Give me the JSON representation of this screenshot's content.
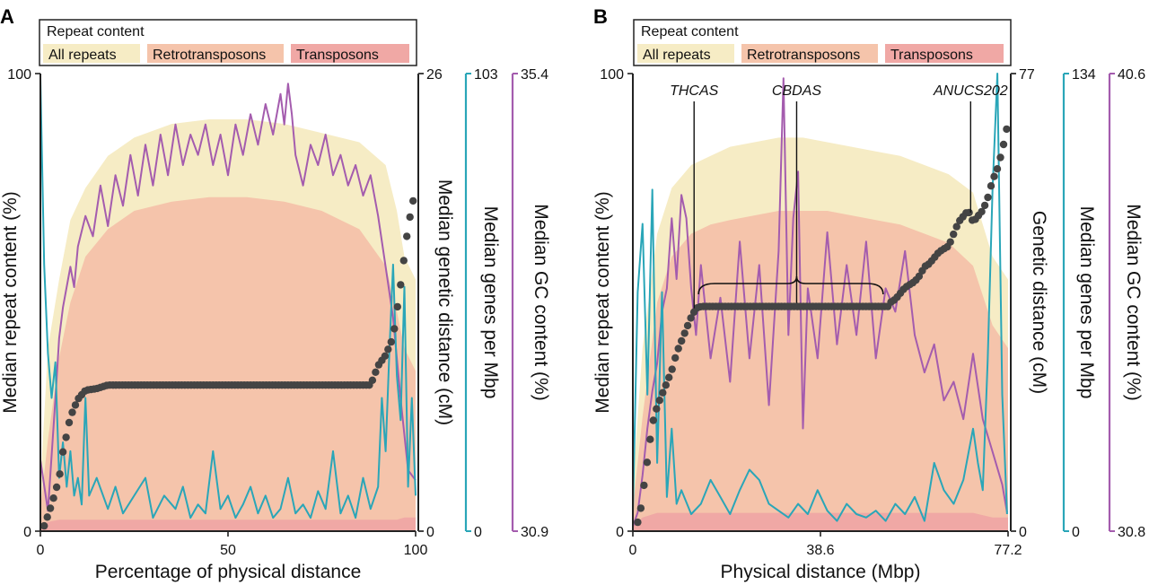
{
  "colors": {
    "all_repeats": "#f6ecc5",
    "retrotransposons": "#f5c4ab",
    "transposons": "#f0a8a5",
    "genetic": "#444444",
    "genes": "#2aa6b8",
    "gc": "#a45cae",
    "axis": "#222222"
  },
  "chart_data": [
    {
      "panel_label": "A",
      "type": "line",
      "legend": {
        "title": "Repeat content",
        "entries": [
          "All repeats",
          "Retrotransposons",
          "Transposons"
        ],
        "placement": "top"
      },
      "xlabel": "Percentage of physical distance",
      "xlim": [
        0,
        100
      ],
      "xticks": [
        {
          "value": 0,
          "label": "0"
        },
        {
          "value": 50,
          "label": "50"
        },
        {
          "value": 100,
          "label": "100"
        }
      ],
      "axes": {
        "repeat": {
          "label": "Median repeat content (%)",
          "lim": [
            0,
            100
          ],
          "tick_labels": [
            "0",
            "100"
          ]
        },
        "genetic": {
          "label": "Median genetic distance (cM)",
          "lim": [
            0,
            26
          ],
          "tick_labels": [
            "0",
            "26"
          ]
        },
        "genes": {
          "label": "Median genes per Mbp",
          "lim": [
            0,
            103
          ],
          "tick_labels": [
            "0",
            "103"
          ]
        },
        "gc": {
          "label": "Median GC content (%)",
          "lim": [
            30.9,
            35.4
          ],
          "tick_labels": [
            "30.9",
            "35.4"
          ]
        }
      },
      "area_series": {
        "x": [
          0,
          2,
          5,
          8,
          12,
          18,
          25,
          35,
          45,
          55,
          65,
          75,
          85,
          92,
          95,
          97,
          100
        ],
        "all_repeats": [
          10,
          40,
          55,
          68,
          75,
          82,
          86,
          89,
          90,
          90,
          89,
          87,
          85,
          80,
          70,
          60,
          55
        ],
        "retrotransposons": [
          5,
          20,
          38,
          50,
          60,
          66,
          70,
          72,
          73,
          73,
          72,
          70,
          66,
          58,
          48,
          40,
          35
        ],
        "transposons": [
          1,
          2,
          2.5,
          2.5,
          2.5,
          2.5,
          2.5,
          2.5,
          2.5,
          2.5,
          2.5,
          2.5,
          2.5,
          2.5,
          2.5,
          3,
          3
        ]
      },
      "genetic_distance": {
        "x": [
          1,
          3,
          5,
          6,
          8,
          10,
          12,
          15,
          18,
          88,
          90,
          92,
          94,
          96,
          98,
          100
        ],
        "y": [
          0.3,
          1.5,
          3,
          4.5,
          6.5,
          7.5,
          8,
          8.1,
          8.3,
          8.3,
          9.4,
          10,
          11,
          14,
          17.3,
          19.5
        ]
      },
      "genes_per_mbp": {
        "x": [
          0,
          1,
          2,
          3,
          4,
          5,
          6,
          7,
          8,
          9,
          10,
          11,
          12,
          13,
          15,
          18,
          20,
          22,
          25,
          28,
          30,
          33,
          36,
          38,
          40,
          42,
          44,
          46,
          48,
          50,
          52,
          54,
          56,
          58,
          60,
          62,
          64,
          66,
          68,
          70,
          72,
          74,
          76,
          78,
          80,
          82,
          84,
          86,
          88,
          90,
          91,
          92,
          93,
          94,
          95,
          96,
          97,
          98,
          99,
          100
        ],
        "y": [
          102,
          60,
          40,
          30,
          38,
          12,
          20,
          10,
          18,
          8,
          12,
          6,
          30,
          8,
          12,
          5,
          10,
          4,
          8,
          12,
          3,
          8,
          5,
          10,
          3,
          6,
          4,
          18,
          5,
          8,
          3,
          6,
          10,
          4,
          8,
          3,
          5,
          12,
          4,
          6,
          3,
          9,
          5,
          18,
          4,
          8,
          3,
          12,
          5,
          10,
          30,
          18,
          40,
          60,
          35,
          25,
          55,
          10,
          30,
          8
        ]
      },
      "gc_content": {
        "x": [
          0,
          2,
          4,
          5,
          6,
          8,
          9,
          10,
          12,
          14,
          16,
          18,
          20,
          22,
          24,
          26,
          28,
          30,
          32,
          34,
          36,
          38,
          40,
          42,
          44,
          46,
          48,
          50,
          52,
          54,
          56,
          58,
          60,
          62,
          64,
          65,
          66,
          67,
          68,
          70,
          72,
          74,
          76,
          78,
          80,
          82,
          84,
          86,
          88,
          90,
          92,
          94,
          96,
          98,
          100
        ],
        "y": [
          31.6,
          31.1,
          32.2,
          32.8,
          33.1,
          33.5,
          33.3,
          33.7,
          34.0,
          33.8,
          34.3,
          33.9,
          34.4,
          34.1,
          34.6,
          34.2,
          34.7,
          34.3,
          34.8,
          34.4,
          34.9,
          34.5,
          34.8,
          34.6,
          34.9,
          34.5,
          34.8,
          34.4,
          34.9,
          34.6,
          35.0,
          34.7,
          35.1,
          34.8,
          35.2,
          34.9,
          35.3,
          35.0,
          34.6,
          34.3,
          34.7,
          34.5,
          34.8,
          34.4,
          34.6,
          34.3,
          34.5,
          34.2,
          34.4,
          34.0,
          33.5,
          33.0,
          32.2,
          31.5,
          31.4
        ]
      }
    },
    {
      "panel_label": "B",
      "type": "line",
      "legend": {
        "title": "Repeat content",
        "entries": [
          "All repeats",
          "Retrotransposons",
          "Transposons"
        ],
        "placement": "top"
      },
      "xlabel": "Physical distance (Mbp)",
      "xlim": [
        0,
        77.2
      ],
      "xticks": [
        {
          "value": 0,
          "label": "0"
        },
        {
          "value": 38.6,
          "label": "38.6"
        },
        {
          "value": 77.2,
          "label": "77.2"
        }
      ],
      "axes": {
        "repeat": {
          "label": "Median repeat content (%)",
          "lim": [
            0,
            100
          ],
          "tick_labels": [
            "0",
            "100"
          ]
        },
        "genetic": {
          "label": "Genetic distance (cM)",
          "lim": [
            0,
            77
          ],
          "tick_labels": [
            "0",
            "77"
          ]
        },
        "genes": {
          "label": "Median genes per Mbp",
          "lim": [
            0,
            134
          ],
          "tick_labels": [
            "0",
            "134"
          ]
        },
        "gc": {
          "label": "Median GC content (%)",
          "lim": [
            30.8,
            40.6
          ],
          "tick_labels": [
            "30.8",
            "40.6"
          ]
        }
      },
      "annotations": [
        {
          "text": "THCAS",
          "x": 12.6
        },
        {
          "text": "CBDAS",
          "x": 33.7
        },
        {
          "text": "ANUCS202",
          "x": 69.5
        }
      ],
      "area_series": {
        "x": [
          0,
          2,
          5,
          8,
          12,
          16,
          20,
          25,
          30,
          35,
          40,
          45,
          50,
          55,
          60,
          65,
          70,
          74,
          77.2
        ],
        "all_repeats": [
          10,
          40,
          65,
          75,
          80,
          82,
          84,
          85,
          86,
          86,
          85,
          84,
          83,
          82,
          80,
          78,
          74,
          60,
          55
        ],
        "retrotransposons": [
          5,
          25,
          50,
          60,
          65,
          67,
          68,
          69,
          70,
          70,
          70,
          69,
          68,
          67,
          65,
          63,
          58,
          45,
          40
        ],
        "transposons": [
          1,
          3,
          4,
          4,
          4,
          4,
          4,
          4,
          4,
          4,
          4,
          4,
          4,
          4,
          4,
          4,
          4,
          3,
          3
        ]
      },
      "genetic_distance": {
        "x": [
          1,
          1.5,
          2,
          2.5,
          3,
          3.5,
          4,
          5,
          6,
          7,
          8,
          9,
          10,
          11,
          12,
          13,
          14,
          52.5,
          53,
          54,
          55,
          56,
          57,
          58,
          59,
          60,
          61,
          62,
          63,
          64,
          65,
          66,
          67,
          68,
          69,
          70,
          71,
          72,
          73,
          74,
          75,
          76,
          77
        ],
        "y": [
          1.5,
          3,
          6,
          9,
          12,
          15,
          18,
          21,
          23,
          25,
          27,
          30,
          32,
          34,
          36,
          37.5,
          37.8,
          37.8,
          38.5,
          39,
          40,
          41,
          41.5,
          42,
          43,
          44.5,
          45,
          46,
          47,
          47.5,
          48,
          50,
          52,
          53,
          54,
          52,
          53,
          54,
          56,
          59,
          61,
          64,
          68
        ]
      },
      "genes_per_mbp": {
        "x": [
          0,
          1,
          2,
          3,
          4,
          5,
          6,
          7,
          8,
          9,
          10,
          12,
          14,
          16,
          18,
          20,
          22,
          24,
          26,
          28,
          30,
          32,
          34,
          36,
          38,
          40,
          42,
          44,
          46,
          48,
          50,
          52,
          54,
          56,
          58,
          60,
          62,
          64,
          66,
          68,
          70,
          71,
          72,
          73,
          74,
          75,
          76,
          77
        ],
        "y": [
          5,
          70,
          90,
          40,
          100,
          20,
          70,
          10,
          30,
          8,
          12,
          5,
          8,
          15,
          10,
          5,
          12,
          18,
          15,
          8,
          6,
          4,
          8,
          5,
          12,
          6,
          3,
          8,
          5,
          4,
          6,
          3,
          8,
          5,
          10,
          3,
          20,
          12,
          8,
          15,
          30,
          20,
          12,
          50,
          100,
          134,
          40,
          5
        ]
      },
      "gc_content": {
        "x": [
          0,
          1,
          2,
          3,
          4,
          5,
          6,
          7,
          8,
          9,
          10,
          11,
          12,
          13,
          14,
          16,
          18,
          20,
          22,
          24,
          26,
          28,
          30,
          31,
          32,
          33,
          34,
          35,
          36,
          38,
          40,
          42,
          44,
          46,
          48,
          50,
          52,
          54,
          56,
          58,
          60,
          62,
          64,
          66,
          68,
          70,
          72,
          74,
          76,
          77
        ],
        "y": [
          30.9,
          31.2,
          32.0,
          33.0,
          33.8,
          34.4,
          35.5,
          36.0,
          37.5,
          36.2,
          38.0,
          37.5,
          36.0,
          35.0,
          36.5,
          34.5,
          35.8,
          34.0,
          37.0,
          34.5,
          36.5,
          33.5,
          36.8,
          40.5,
          35.0,
          37.5,
          38.5,
          33.0,
          36.0,
          34.5,
          37.2,
          34.8,
          36.5,
          35.0,
          37.0,
          34.5,
          36.0,
          35.5,
          36.8,
          35.0,
          34.2,
          34.8,
          33.6,
          34.0,
          33.2,
          34.6,
          33.2,
          32.5,
          31.8,
          31.2
        ]
      }
    }
  ]
}
